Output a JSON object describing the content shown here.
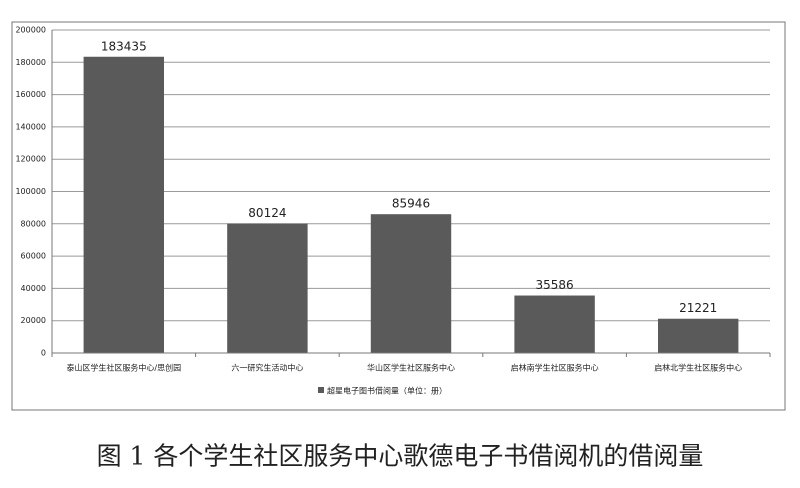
{
  "chart_data": {
    "type": "bar",
    "categories": [
      "泰山区学生社区服务中心/思创园",
      "六一研究生活动中心",
      "华山区学生社区服务中心",
      "启林南学生社区服务中心",
      "启林北学生社区服务中心"
    ],
    "series": [
      {
        "name": "超星电子图书借阅量（单位：册）",
        "color": "#5a5a5a",
        "values": [
          183435,
          80124,
          85946,
          35586,
          21221
        ]
      }
    ],
    "ylim": [
      0,
      200000
    ],
    "yticks": [
      0,
      20000,
      40000,
      60000,
      80000,
      100000,
      120000,
      140000,
      160000,
      180000,
      200000
    ],
    "grid": true,
    "legend": "bottom",
    "caption": "图 1 各个学生社区服务中心歌德电子书借阅机的借阅量"
  }
}
